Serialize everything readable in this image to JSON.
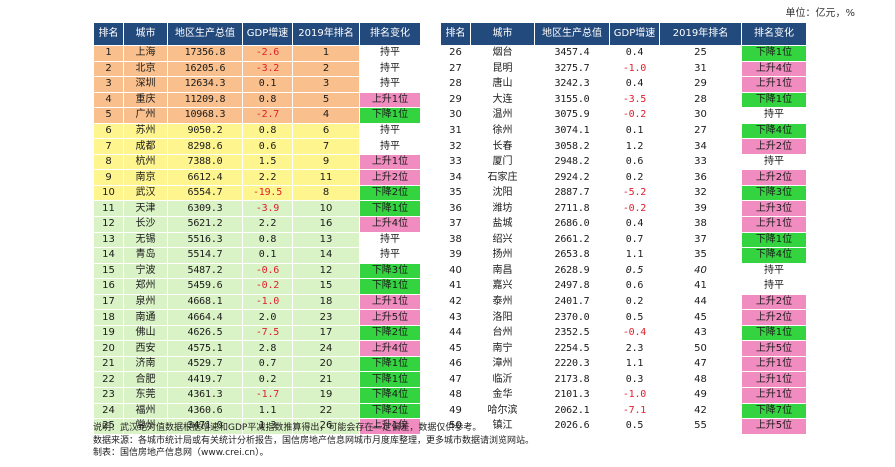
{
  "unit": "单位：亿元，%",
  "left": {
    "headers": [
      "排名",
      "城市",
      "地区生产总值",
      "GDP增速",
      "2019年排名",
      "排名变化"
    ],
    "rows": [
      {
        "rank": "1",
        "city": "上海",
        "gdp": "17356.8",
        "growth": "-2.6",
        "rank2019": "1",
        "change": "持平",
        "band": "orange",
        "chg": "flat",
        "neg": true
      },
      {
        "rank": "2",
        "city": "北京",
        "gdp": "16205.6",
        "growth": "-3.2",
        "rank2019": "2",
        "change": "持平",
        "band": "orange",
        "chg": "flat",
        "neg": true
      },
      {
        "rank": "3",
        "city": "深圳",
        "gdp": "12634.3",
        "growth": "0.1",
        "rank2019": "3",
        "change": "持平",
        "band": "orange",
        "chg": "flat",
        "neg": false
      },
      {
        "rank": "4",
        "city": "重庆",
        "gdp": "11209.8",
        "growth": "0.8",
        "rank2019": "5",
        "change": "上升1位",
        "band": "orange",
        "chg": "up",
        "neg": false
      },
      {
        "rank": "5",
        "city": "广州",
        "gdp": "10968.3",
        "growth": "-2.7",
        "rank2019": "4",
        "change": "下降1位",
        "band": "orange",
        "chg": "down",
        "neg": true
      },
      {
        "rank": "6",
        "city": "苏州",
        "gdp": "9050.2",
        "growth": "0.8",
        "rank2019": "6",
        "change": "持平",
        "band": "yellow",
        "chg": "flat",
        "neg": false
      },
      {
        "rank": "7",
        "city": "成都",
        "gdp": "8298.6",
        "growth": "0.6",
        "rank2019": "7",
        "change": "持平",
        "band": "yellow",
        "chg": "flat",
        "neg": false
      },
      {
        "rank": "8",
        "city": "杭州",
        "gdp": "7388.0",
        "growth": "1.5",
        "rank2019": "9",
        "change": "上升1位",
        "band": "yellow",
        "chg": "up",
        "neg": false
      },
      {
        "rank": "9",
        "city": "南京",
        "gdp": "6612.4",
        "growth": "2.2",
        "rank2019": "11",
        "change": "上升2位",
        "band": "yellow",
        "chg": "up",
        "neg": false
      },
      {
        "rank": "10",
        "city": "武汉",
        "gdp": "6554.7",
        "growth": "-19.5",
        "rank2019": "8",
        "change": "下降2位",
        "band": "yellow",
        "chg": "down",
        "neg": true
      },
      {
        "rank": "11",
        "city": "天津",
        "gdp": "6309.3",
        "growth": "-3.9",
        "rank2019": "10",
        "change": "下降1位",
        "band": "green",
        "chg": "down",
        "neg": true
      },
      {
        "rank": "12",
        "city": "长沙",
        "gdp": "5621.2",
        "growth": "2.2",
        "rank2019": "16",
        "change": "上升4位",
        "band": "green",
        "chg": "up",
        "neg": false
      },
      {
        "rank": "13",
        "city": "无锡",
        "gdp": "5516.3",
        "growth": "0.8",
        "rank2019": "13",
        "change": "持平",
        "band": "green",
        "chg": "flat",
        "neg": false
      },
      {
        "rank": "14",
        "city": "青岛",
        "gdp": "5514.7",
        "growth": "0.1",
        "rank2019": "14",
        "change": "持平",
        "band": "green",
        "chg": "flat",
        "neg": false
      },
      {
        "rank": "15",
        "city": "宁波",
        "gdp": "5487.2",
        "growth": "-0.6",
        "rank2019": "12",
        "change": "下降3位",
        "band": "green",
        "chg": "down",
        "neg": true
      },
      {
        "rank": "16",
        "city": "郑州",
        "gdp": "5459.6",
        "growth": "-0.2",
        "rank2019": "15",
        "change": "下降1位",
        "band": "green",
        "chg": "down",
        "neg": true
      },
      {
        "rank": "17",
        "city": "泉州",
        "gdp": "4668.1",
        "growth": "-1.0",
        "rank2019": "18",
        "change": "上升1位",
        "band": "green",
        "chg": "up",
        "neg": true
      },
      {
        "rank": "18",
        "city": "南通",
        "gdp": "4664.4",
        "growth": "2.0",
        "rank2019": "23",
        "change": "上升5位",
        "band": "green",
        "chg": "up",
        "neg": false
      },
      {
        "rank": "19",
        "city": "佛山",
        "gdp": "4626.5",
        "growth": "-7.5",
        "rank2019": "17",
        "change": "下降2位",
        "band": "green",
        "chg": "down",
        "neg": true
      },
      {
        "rank": "20",
        "city": "西安",
        "gdp": "4575.1",
        "growth": "2.8",
        "rank2019": "24",
        "change": "上升4位",
        "band": "green",
        "chg": "up",
        "neg": false
      },
      {
        "rank": "21",
        "city": "济南",
        "gdp": "4529.7",
        "growth": "0.7",
        "rank2019": "20",
        "change": "下降1位",
        "band": "green",
        "chg": "down",
        "neg": false
      },
      {
        "rank": "22",
        "city": "合肥",
        "gdp": "4419.7",
        "growth": "0.2",
        "rank2019": "21",
        "change": "下降1位",
        "band": "green",
        "chg": "down",
        "neg": false
      },
      {
        "rank": "23",
        "city": "东莞",
        "gdp": "4361.3",
        "growth": "-1.7",
        "rank2019": "19",
        "change": "下降4位",
        "band": "green",
        "chg": "down",
        "neg": true
      },
      {
        "rank": "24",
        "city": "福州",
        "gdp": "4360.6",
        "growth": "1.1",
        "rank2019": "22",
        "change": "下降2位",
        "band": "green",
        "chg": "down",
        "neg": false
      },
      {
        "rank": "25",
        "city": "常州",
        "gdp": "3471.0",
        "growth": "1.3",
        "rank2019": "26",
        "change": "上升1位",
        "band": "green",
        "chg": "up",
        "neg": false
      }
    ]
  },
  "right": {
    "headers": [
      "排名",
      "城市",
      "地区生产总值",
      "GDP增速",
      "2019年排名",
      "排名变化"
    ],
    "rows": [
      {
        "rank": "26",
        "city": "烟台",
        "gdp": "3457.4",
        "growth": "0.4",
        "rank2019": "25",
        "change": "下降1位",
        "chg": "down",
        "neg": false
      },
      {
        "rank": "27",
        "city": "昆明",
        "gdp": "3275.7",
        "growth": "-1.0",
        "rank2019": "31",
        "change": "上升4位",
        "chg": "up",
        "neg": true
      },
      {
        "rank": "28",
        "city": "唐山",
        "gdp": "3242.3",
        "growth": "0.4",
        "rank2019": "29",
        "change": "上升1位",
        "chg": "up",
        "neg": false
      },
      {
        "rank": "29",
        "city": "大连",
        "gdp": "3155.0",
        "growth": "-3.5",
        "rank2019": "28",
        "change": "下降1位",
        "chg": "down",
        "neg": true
      },
      {
        "rank": "30",
        "city": "温州",
        "gdp": "3075.9",
        "growth": "-0.2",
        "rank2019": "30",
        "change": "持平",
        "chg": "flat",
        "neg": true
      },
      {
        "rank": "31",
        "city": "徐州",
        "gdp": "3074.1",
        "growth": "0.1",
        "rank2019": "27",
        "change": "下降4位",
        "chg": "down",
        "neg": false
      },
      {
        "rank": "32",
        "city": "长春",
        "gdp": "3058.2",
        "growth": "1.2",
        "rank2019": "34",
        "change": "上升2位",
        "chg": "up",
        "neg": false
      },
      {
        "rank": "33",
        "city": "厦门",
        "gdp": "2948.2",
        "growth": "0.6",
        "rank2019": "33",
        "change": "持平",
        "chg": "flat",
        "neg": false
      },
      {
        "rank": "34",
        "city": "石家庄",
        "gdp": "2924.2",
        "growth": "0.2",
        "rank2019": "36",
        "change": "上升2位",
        "chg": "up",
        "neg": false
      },
      {
        "rank": "35",
        "city": "沈阳",
        "gdp": "2887.7",
        "growth": "-5.2",
        "rank2019": "32",
        "change": "下降3位",
        "chg": "down",
        "neg": true
      },
      {
        "rank": "36",
        "city": "潍坊",
        "gdp": "2711.8",
        "growth": "-0.2",
        "rank2019": "39",
        "change": "上升3位",
        "chg": "up",
        "neg": true
      },
      {
        "rank": "37",
        "city": "盐城",
        "gdp": "2686.0",
        "growth": "0.4",
        "rank2019": "38",
        "change": "上升1位",
        "chg": "up",
        "neg": false
      },
      {
        "rank": "38",
        "city": "绍兴",
        "gdp": "2661.2",
        "growth": "0.7",
        "rank2019": "37",
        "change": "下降1位",
        "chg": "down",
        "neg": false
      },
      {
        "rank": "39",
        "city": "扬州",
        "gdp": "2653.8",
        "growth": "1.1",
        "rank2019": "35",
        "change": "下降4位",
        "chg": "down",
        "neg": false
      },
      {
        "rank": "40",
        "city": "南昌",
        "gdp": "2628.9",
        "growth": "0.5",
        "rank2019": "40",
        "change": "持平",
        "chg": "flat",
        "neg": false,
        "ital": true
      },
      {
        "rank": "41",
        "city": "嘉兴",
        "gdp": "2497.8",
        "growth": "0.6",
        "rank2019": "41",
        "change": "持平",
        "chg": "flat",
        "neg": false
      },
      {
        "rank": "42",
        "city": "泰州",
        "gdp": "2401.7",
        "growth": "0.2",
        "rank2019": "44",
        "change": "上升2位",
        "chg": "up",
        "neg": false
      },
      {
        "rank": "43",
        "city": "洛阳",
        "gdp": "2370.0",
        "growth": "0.5",
        "rank2019": "45",
        "change": "上升2位",
        "chg": "up",
        "neg": false
      },
      {
        "rank": "44",
        "city": "台州",
        "gdp": "2352.5",
        "growth": "-0.4",
        "rank2019": "43",
        "change": "下降1位",
        "chg": "down",
        "neg": true
      },
      {
        "rank": "45",
        "city": "南宁",
        "gdp": "2254.5",
        "growth": "2.3",
        "rank2019": "50",
        "change": "上升5位",
        "chg": "up",
        "neg": false
      },
      {
        "rank": "46",
        "city": "漳州",
        "gdp": "2220.3",
        "growth": "1.1",
        "rank2019": "47",
        "change": "上升1位",
        "chg": "up",
        "neg": false
      },
      {
        "rank": "47",
        "city": "临沂",
        "gdp": "2173.8",
        "growth": "0.3",
        "rank2019": "48",
        "change": "上升1位",
        "chg": "up",
        "neg": false
      },
      {
        "rank": "48",
        "city": "金华",
        "gdp": "2101.3",
        "growth": "-1.0",
        "rank2019": "49",
        "change": "上升1位",
        "chg": "up",
        "neg": true
      },
      {
        "rank": "49",
        "city": "哈尔滨",
        "gdp": "2062.1",
        "growth": "-7.1",
        "rank2019": "42",
        "change": "下降7位",
        "chg": "down",
        "neg": true
      },
      {
        "rank": "50",
        "city": "镇江",
        "gdp": "2026.6",
        "growth": "0.5",
        "rank2019": "55",
        "change": "上升5位",
        "chg": "up",
        "neg": false
      }
    ]
  },
  "notes": {
    "line1": "说明：武汉绝对值数据根据增速和GDP平减指数推算得出，可能会存在一定偏差，数据仅供参考。",
    "line2": "数据来源：各城市统计局或有关统计分析报告，国信房地产信息网城市月度库整理，更多城市数据请浏览网站。",
    "line3": "制表：国信房地产信息网（www.crei.cn）。"
  },
  "colors": {
    "header": "#234a7d",
    "orange": "#f9c08d",
    "yellow": "#fff58f",
    "green": "#d9f2c6",
    "up": "#f08cbf",
    "down": "#34d340",
    "negative": "#e0202b"
  }
}
